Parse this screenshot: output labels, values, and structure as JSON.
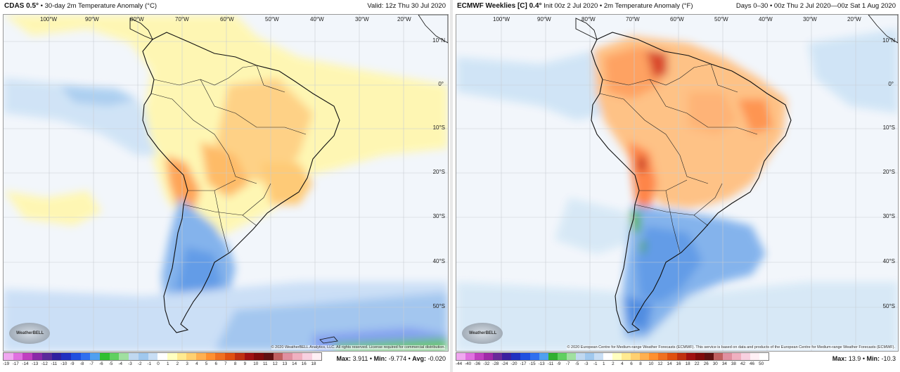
{
  "left": {
    "model": "CDAS 0.5°",
    "title": "• 30-day 2m Temperature Anomaly (°C)",
    "valid": "Valid: 12z Thu 30 Jul 2020",
    "lon_labels": [
      "100°W",
      "90°W",
      "80°W",
      "70°W",
      "60°W",
      "50°W",
      "40°W",
      "30°W",
      "20°W"
    ],
    "lat_labels": [
      "10°N",
      "0°",
      "10°S",
      "20°S",
      "30°S",
      "40°S",
      "50°S"
    ],
    "credit": "© 2020 WeatherBELL Analytics, LLC. All rights reserved. License required for commercial distribution.",
    "logo": "WeatherBELL",
    "colorbar_ticks": [
      "-19",
      "-17",
      "-14",
      "-13",
      "-12",
      "-11",
      "-10",
      "-9",
      "-8",
      "-7",
      "-6",
      "-5",
      "-4",
      "-3",
      "-2",
      "-1",
      "0",
      "1",
      "2",
      "3",
      "4",
      "5",
      "6",
      "7",
      "8",
      "9",
      "10",
      "11",
      "12",
      "13",
      "14",
      "16",
      "18"
    ],
    "colorbar_colors": [
      "#f0a8f0",
      "#e070e0",
      "#c040c0",
      "#8a2aa8",
      "#5a2a9a",
      "#3020a0",
      "#2030c0",
      "#2050e0",
      "#3070f0",
      "#50a0f0",
      "#30c030",
      "#60d060",
      "#a0e0a0",
      "#c0d8f0",
      "#a0c8ee",
      "#c8def5",
      "#ffffff",
      "#ffffc0",
      "#ffea90",
      "#ffd070",
      "#ffb050",
      "#ff9030",
      "#f07020",
      "#e05010",
      "#c03010",
      "#a01010",
      "#800a0a",
      "#601010",
      "#c06060",
      "#e090a0",
      "#f0b0c0",
      "#f8d0e0",
      "#fff0f5"
    ],
    "stats": {
      "max_label": "Max:",
      "max": "3.911",
      "min_label": "Min:",
      "min": "-9.774",
      "avg_label": "Avg:",
      "avg": "-0.020"
    }
  },
  "right": {
    "model": "ECMWF Weeklies [C] 0.4°",
    "title": "Init 00z 2 Jul 2020 • 2m Temperature Anomaly (°F)",
    "valid": "Days 0–30 • 00z Thu 2 Jul 2020—00z Sat 1 Aug 2020",
    "lon_labels": [
      "100°W",
      "90°W",
      "80°W",
      "70°W",
      "60°W",
      "50°W",
      "40°W",
      "30°W",
      "20°W"
    ],
    "lat_labels": [
      "10°N",
      "0°",
      "10°S",
      "20°S",
      "30°S",
      "40°S",
      "50°S"
    ],
    "credit": "© 2020 European Centre for Medium-range Weather Forecasts (ECMWF). This service is based on data and products of the European Centre for Medium-range Weather Forecasts (ECMWF).",
    "logo": "WeatherBELL",
    "colorbar_ticks": [
      "-44",
      "-40",
      "-36",
      "-32",
      "-28",
      "-24",
      "-20",
      "-17",
      "-15",
      "-13",
      "-11",
      "-9",
      "-7",
      "-5",
      "-3",
      "-1",
      "1",
      "2",
      "4",
      "6",
      "8",
      "10",
      "12",
      "14",
      "16",
      "18",
      "22",
      "26",
      "30",
      "34",
      "38",
      "42",
      "46",
      "50"
    ],
    "colorbar_colors": [
      "#f0a8f0",
      "#e070e0",
      "#c040c0",
      "#a02aa8",
      "#6a2a9a",
      "#3a20a0",
      "#2030c0",
      "#2050e0",
      "#3070f0",
      "#50a0f0",
      "#30b030",
      "#60d060",
      "#a0e0a0",
      "#c0d8f0",
      "#a0c8ee",
      "#c8def5",
      "#ffffff",
      "#ffffc0",
      "#ffea90",
      "#ffd070",
      "#ffb050",
      "#ff9030",
      "#f07020",
      "#e05010",
      "#c03010",
      "#a01010",
      "#800a0a",
      "#601010",
      "#c06060",
      "#e090a0",
      "#f0b0c0",
      "#f8d0e0",
      "#fff0f5",
      "#ffffff"
    ],
    "stats": {
      "max_label": "Max:",
      "max": "13.9",
      "min_label": "Min:",
      "min": "-10.3"
    }
  }
}
